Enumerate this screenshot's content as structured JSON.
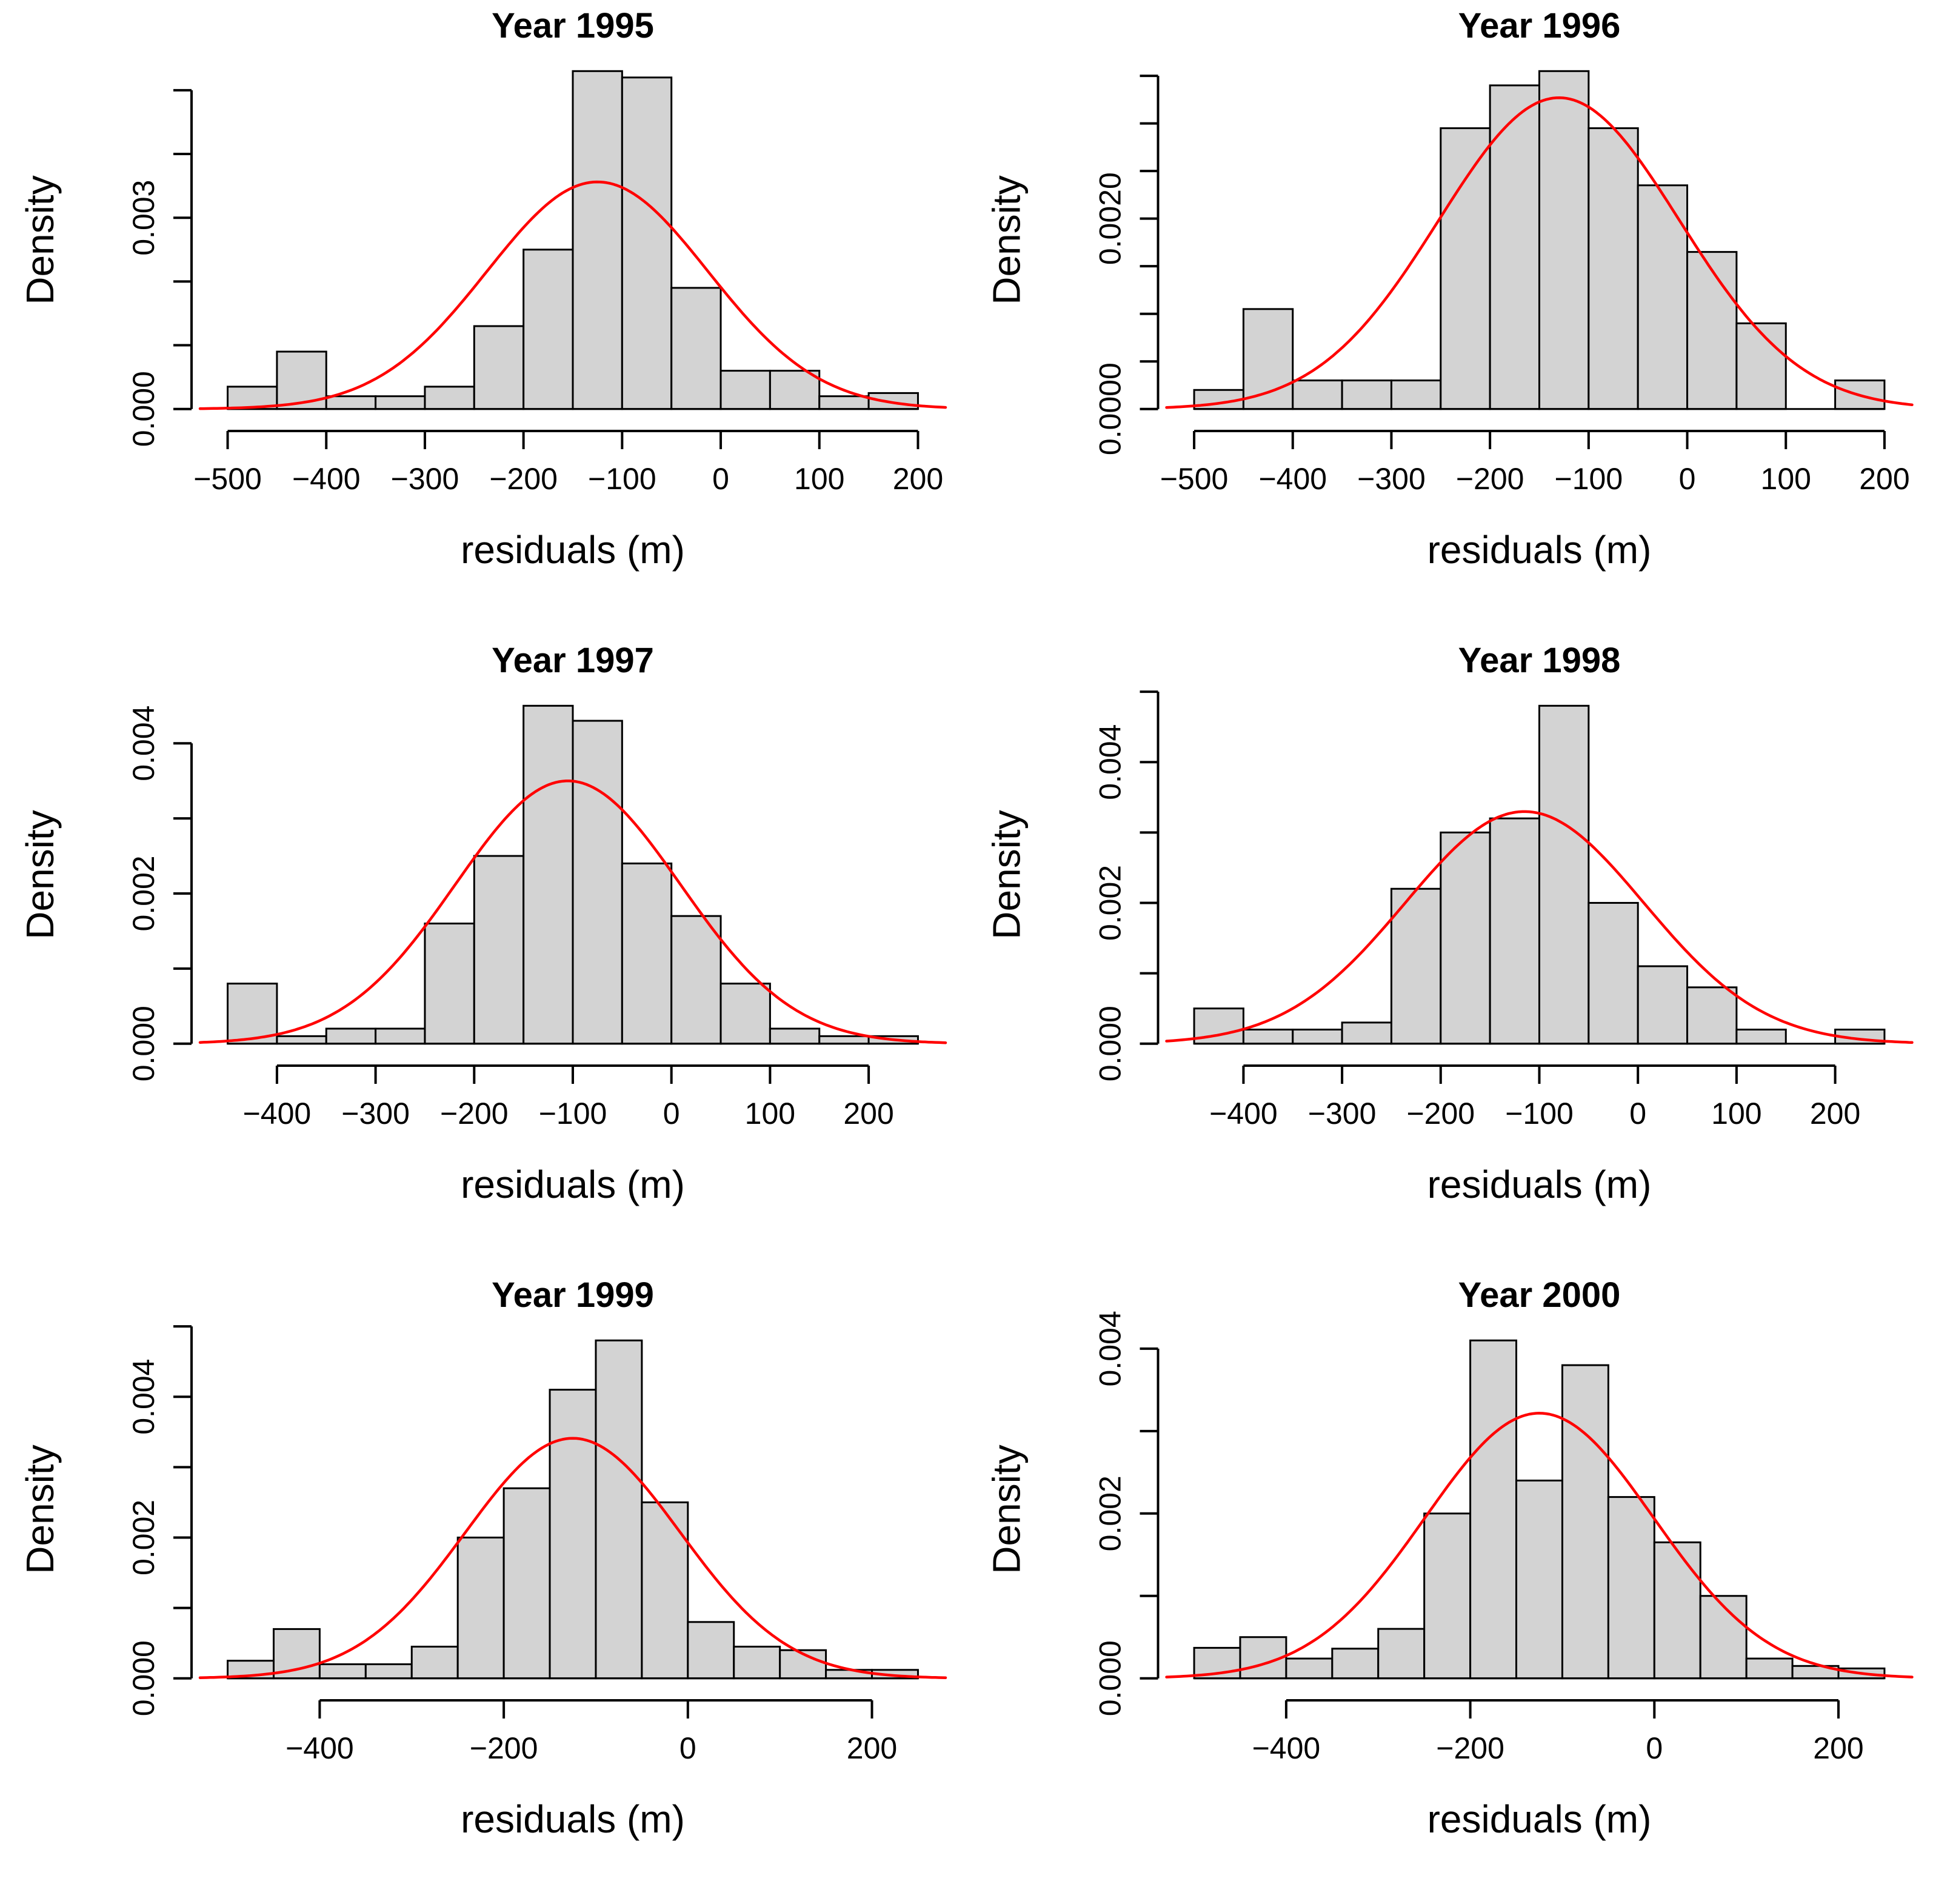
{
  "style": {
    "background": "#ffffff",
    "bar_fill": "#d3d3d3",
    "bar_border": "#000000",
    "curve_color": "#ff0000",
    "axis_color": "#000000",
    "text_color": "#000000"
  },
  "chart_data": [
    {
      "type": "bar",
      "variant": "histogram-with-normal-curve",
      "title": "Year 1995",
      "xlabel": "residuals (m)",
      "ylabel": "Density",
      "bin_start": -500,
      "bin_width": 50,
      "densities": [
        0.00035,
        0.0009,
        0.0002,
        0.0002,
        0.00035,
        0.0013,
        0.0025,
        0.0053,
        0.0052,
        0.0019,
        0.0006,
        0.0006,
        0.0002,
        0.00025
      ],
      "xlim": [
        -500,
        200
      ],
      "ylim": [
        0,
        0.0053
      ],
      "x_ticks": [
        {
          "v": -500,
          "label": "−500"
        },
        {
          "v": -400,
          "label": "−400"
        },
        {
          "v": -300,
          "label": "−300"
        },
        {
          "v": -200,
          "label": "−200"
        },
        {
          "v": -100,
          "label": "−100"
        },
        {
          "v": 0,
          "label": "0"
        },
        {
          "v": 100,
          "label": "100"
        },
        {
          "v": 200,
          "label": "200"
        }
      ],
      "y_ticks": [
        {
          "v": 0.0,
          "label": "0.000"
        },
        {
          "v": 0.001,
          "label": null
        },
        {
          "v": 0.002,
          "label": null
        },
        {
          "v": 0.003,
          "label": "0.003"
        },
        {
          "v": 0.004,
          "label": null
        },
        {
          "v": 0.005,
          "label": null
        }
      ],
      "normal_curve": {
        "mean": -125,
        "sd": 112
      },
      "grid": false,
      "legend": null
    },
    {
      "type": "bar",
      "variant": "histogram-with-normal-curve",
      "title": "Year 1996",
      "xlabel": "residuals (m)",
      "ylabel": "Density",
      "bin_start": -500,
      "bin_width": 50,
      "densities": [
        0.0002,
        0.00105,
        0.0003,
        0.0003,
        0.0003,
        0.00295,
        0.0034,
        0.00355,
        0.00295,
        0.00235,
        0.00165,
        0.0009,
        0,
        0.0003
      ],
      "xlim": [
        -500,
        200
      ],
      "ylim": [
        0,
        0.00355
      ],
      "x_ticks": [
        {
          "v": -500,
          "label": "−500"
        },
        {
          "v": -400,
          "label": "−400"
        },
        {
          "v": -300,
          "label": "−300"
        },
        {
          "v": -200,
          "label": "−200"
        },
        {
          "v": -100,
          "label": "−100"
        },
        {
          "v": 0,
          "label": "0"
        },
        {
          "v": 100,
          "label": "100"
        },
        {
          "v": 200,
          "label": "200"
        }
      ],
      "y_ticks": [
        {
          "v": 0.0,
          "label": "0.0000"
        },
        {
          "v": 0.0005,
          "label": null
        },
        {
          "v": 0.001,
          "label": null
        },
        {
          "v": 0.0015,
          "label": null
        },
        {
          "v": 0.002,
          "label": "0.0020"
        },
        {
          "v": 0.0025,
          "label": null
        },
        {
          "v": 0.003,
          "label": null
        },
        {
          "v": 0.0035,
          "label": null
        }
      ],
      "normal_curve": {
        "mean": -130,
        "sd": 122
      },
      "grid": false,
      "legend": null
    },
    {
      "type": "bar",
      "variant": "histogram-with-normal-curve",
      "title": "Year 1997",
      "xlabel": "residuals (m)",
      "ylabel": "Density",
      "bin_start": -450,
      "bin_width": 50,
      "densities": [
        0.0008,
        0.0001,
        0.0002,
        0.0002,
        0.0016,
        0.0025,
        0.0045,
        0.0043,
        0.0024,
        0.0017,
        0.0008,
        0.0002,
        0.0001,
        0.0001
      ],
      "xlim": [
        -450,
        250
      ],
      "ylim": [
        0,
        0.0045
      ],
      "x_ticks": [
        {
          "v": -400,
          "label": "−400"
        },
        {
          "v": -300,
          "label": "−300"
        },
        {
          "v": -200,
          "label": "−200"
        },
        {
          "v": -100,
          "label": "−100"
        },
        {
          "v": 0,
          "label": "0"
        },
        {
          "v": 100,
          "label": "100"
        },
        {
          "v": 200,
          "label": "200"
        }
      ],
      "y_ticks": [
        {
          "v": 0.0,
          "label": "0.000"
        },
        {
          "v": 0.001,
          "label": null
        },
        {
          "v": 0.002,
          "label": "0.002"
        },
        {
          "v": 0.003,
          "label": null
        },
        {
          "v": 0.004,
          "label": "0.004"
        }
      ],
      "normal_curve": {
        "mean": -105,
        "sd": 114
      },
      "grid": false,
      "legend": null
    },
    {
      "type": "bar",
      "variant": "histogram-with-normal-curve",
      "title": "Year 1998",
      "xlabel": "residuals (m)",
      "ylabel": "Density",
      "bin_start": -450,
      "bin_width": 50,
      "densities": [
        0.0005,
        0.0002,
        0.0002,
        0.0003,
        0.0022,
        0.003,
        0.0032,
        0.0048,
        0.002,
        0.0011,
        0.0008,
        0.0002,
        0,
        0.0002
      ],
      "xlim": [
        -450,
        250
      ],
      "ylim": [
        0,
        0.0048
      ],
      "x_ticks": [
        {
          "v": -400,
          "label": "−400"
        },
        {
          "v": -300,
          "label": "−300"
        },
        {
          "v": -200,
          "label": "−200"
        },
        {
          "v": -100,
          "label": "−100"
        },
        {
          "v": 0,
          "label": "0"
        },
        {
          "v": 100,
          "label": "100"
        },
        {
          "v": 200,
          "label": "200"
        }
      ],
      "y_ticks": [
        {
          "v": 0.0,
          "label": "0.000"
        },
        {
          "v": 0.001,
          "label": null
        },
        {
          "v": 0.002,
          "label": "0.002"
        },
        {
          "v": 0.003,
          "label": null
        },
        {
          "v": 0.004,
          "label": "0.004"
        },
        {
          "v": 0.005,
          "label": null
        }
      ],
      "normal_curve": {
        "mean": -115,
        "sd": 121
      },
      "grid": false,
      "legend": null
    },
    {
      "type": "bar",
      "variant": "histogram-with-normal-curve",
      "title": "Year 1999",
      "xlabel": "residuals (m)",
      "ylabel": "Density",
      "bin_start": -500,
      "bin_width": 50,
      "densities": [
        0.00025,
        0.0007,
        0.0002,
        0.0002,
        0.00045,
        0.002,
        0.0027,
        0.0041,
        0.0048,
        0.0025,
        0.0008,
        0.00045,
        0.0004,
        0.00012,
        0.00012
      ],
      "xlim": [
        -500,
        250
      ],
      "ylim": [
        0,
        0.0048
      ],
      "x_ticks": [
        {
          "v": -400,
          "label": "−400"
        },
        {
          "v": -200,
          "label": "−200"
        },
        {
          "v": 0,
          "label": "0"
        },
        {
          "v": 200,
          "label": "200"
        }
      ],
      "y_ticks": [
        {
          "v": 0.0,
          "label": "0.000"
        },
        {
          "v": 0.001,
          "label": null
        },
        {
          "v": 0.002,
          "label": "0.002"
        },
        {
          "v": 0.003,
          "label": null
        },
        {
          "v": 0.004,
          "label": "0.004"
        },
        {
          "v": 0.005,
          "label": null
        }
      ],
      "normal_curve": {
        "mean": -125,
        "sd": 117
      },
      "grid": false,
      "legend": null
    },
    {
      "type": "bar",
      "variant": "histogram-with-normal-curve",
      "title": "Year 2000",
      "xlabel": "residuals (m)",
      "ylabel": "Density",
      "bin_start": -500,
      "bin_width": 50,
      "densities": [
        0.00037,
        0.0005,
        0.00024,
        0.00036,
        0.0006,
        0.002,
        0.0041,
        0.0024,
        0.0038,
        0.0022,
        0.00165,
        0.001,
        0.00024,
        0.00015,
        0.00012
      ],
      "xlim": [
        -500,
        250
      ],
      "ylim": [
        0,
        0.0041
      ],
      "x_ticks": [
        {
          "v": -400,
          "label": "−400"
        },
        {
          "v": -200,
          "label": "−200"
        },
        {
          "v": 0,
          "label": "0"
        },
        {
          "v": 200,
          "label": "200"
        }
      ],
      "y_ticks": [
        {
          "v": 0.0,
          "label": "0.000"
        },
        {
          "v": 0.001,
          "label": null
        },
        {
          "v": 0.002,
          "label": "0.002"
        },
        {
          "v": 0.003,
          "label": null
        },
        {
          "v": 0.004,
          "label": "0.004"
        }
      ],
      "normal_curve": {
        "mean": -125,
        "sd": 124
      },
      "grid": false,
      "legend": null
    }
  ]
}
